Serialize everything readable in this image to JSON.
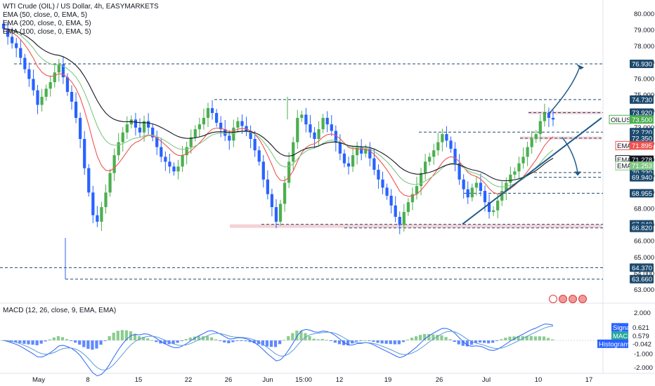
{
  "title": "WTI Crude (OIL) / US Dollar, 4h, EASYMARKETS",
  "indicators": [
    "EMA (50, close, 0, EMA, 5)",
    "EMA (200, close, 0, EMA, 5)",
    "EMA (100, close, 0, EMA, 5)"
  ],
  "macd_label": "MACD (12, 26, close, 9, EMA, EMA)",
  "colors": {
    "up": "#4caf50",
    "down": "#2962ff",
    "ema50": "#81c784",
    "ema100": "#131722",
    "ema200": "#ef5350",
    "level": "#1c4a6e",
    "tag": "#1c4a6e",
    "trend": "#1f5a8a",
    "zone": "#f3c7cc",
    "macd": "#2962ff",
    "signal": "#5b9bd5"
  },
  "chart_data": {
    "type": "candlestick",
    "symbol": "OILUSD",
    "price_axis": {
      "ylim": [
        63,
        80.5
      ],
      "ticks": [
        "80.000",
        "79.000",
        "78.000",
        "77.000",
        "76.000",
        "75.000",
        "74.000",
        "73.000",
        "72.000",
        "71.000",
        "70.000",
        "69.000",
        "68.000",
        "67.000",
        "66.000",
        "65.000",
        "64.000",
        "63.000"
      ]
    },
    "time_axis": [
      "May",
      "8",
      "15",
      "22",
      "26",
      "Jun",
      "15:00",
      "12",
      "19",
      "26",
      "Jul",
      "10",
      "17"
    ],
    "levels": [
      {
        "label": "76.930",
        "value": 76.93
      },
      {
        "label": "74.730",
        "value": 74.73
      },
      {
        "label": "73.920",
        "value": 73.92
      },
      {
        "label": "72.720",
        "value": 72.72
      },
      {
        "label": "72.350",
        "value": 72.35
      },
      {
        "label": "70.230",
        "value": 70.23
      },
      {
        "label": "69.940",
        "value": 69.94
      },
      {
        "label": "68.955",
        "value": 68.955
      },
      {
        "label": "67.040",
        "value": 67.04
      },
      {
        "label": "66.820",
        "value": 66.82
      },
      {
        "label": "64.370",
        "value": 64.37
      },
      {
        "label": "63.660",
        "value": 63.66
      }
    ],
    "price_tags": [
      {
        "text": "OILUSD",
        "value": "73.500"
      },
      {
        "text": "EMA",
        "value": "71.895"
      },
      {
        "text": "EMA",
        "value": "71.278"
      },
      {
        "text": "EMA",
        "value": "71.253"
      }
    ],
    "macd": {
      "ticks": [
        "2.000",
        "1.000",
        "0.000",
        "-1.000",
        "-2.000"
      ],
      "tags": [
        {
          "text": "Signal",
          "value": "0.621"
        },
        {
          "text": "MACD",
          "value": "0.579"
        },
        {
          "text": "Histogram",
          "value": "-0.042"
        }
      ]
    },
    "close": [
      79.1,
      78.6,
      78.2,
      77.9,
      77.3,
      76.6,
      76.0,
      75.3,
      74.4,
      74.9,
      75.4,
      75.8,
      76.4,
      76.9,
      76.1,
      75.2,
      74.6,
      73.6,
      72.3,
      70.5,
      69.0,
      67.6,
      67.2,
      68.1,
      69.0,
      70.2,
      71.3,
      72.1,
      72.7,
      73.2,
      73.5,
      73.0,
      72.7,
      73.4,
      73.0,
      72.4,
      71.8,
      71.2,
      70.9,
      70.6,
      70.3,
      70.6,
      71.3,
      71.8,
      72.4,
      72.9,
      73.2,
      73.6,
      74.2,
      73.9,
      73.3,
      72.9,
      72.5,
      72.2,
      73.0,
      73.4,
      73.1,
      72.8,
      72.3,
      71.6,
      70.9,
      69.8,
      68.9,
      68.1,
      67.2,
      68.3,
      69.6,
      70.9,
      72.1,
      73.6,
      73.8,
      73.2,
      72.7,
      72.3,
      72.9,
      73.6,
      73.2,
      72.8,
      72.1,
      71.4,
      70.8,
      70.6,
      71.3,
      71.8,
      71.4,
      71.7,
      71.1,
      70.4,
      69.8,
      69.3,
      68.8,
      68.2,
      67.5,
      67.0,
      67.8,
      68.4,
      68.9,
      69.4,
      70.2,
      70.9,
      71.2,
      71.6,
      72.1,
      72.6,
      72.2,
      71.7,
      70.8,
      69.8,
      69.2,
      68.7,
      69.3,
      69.6,
      69.1,
      68.4,
      67.8,
      67.9,
      68.5,
      69.1,
      69.6,
      70.1,
      70.3,
      70.8,
      71.2,
      71.8,
      72.3,
      72.6,
      73.4,
      73.9,
      73.6,
      73.5
    ]
  }
}
